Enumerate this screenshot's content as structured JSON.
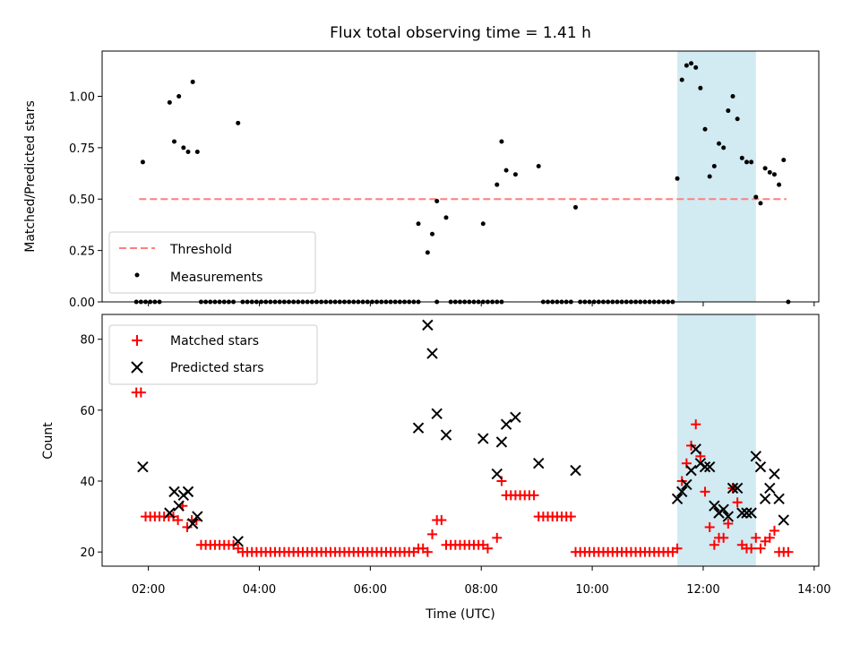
{
  "chart_data": [
    {
      "type": "scatter",
      "title": "Flux total observing time = 1.41 h",
      "xlabel": "",
      "ylabel": "Matched/Predicted stars",
      "ylim": [
        0,
        1.22
      ],
      "xlim": [
        "01:10",
        "14:05"
      ],
      "y_ticks": [
        0.0,
        0.25,
        0.5,
        0.75,
        1.0
      ],
      "y_tick_labels": [
        "0.00",
        "0.25",
        "0.50",
        "0.75",
        "1.00"
      ],
      "highlight_span": {
        "start": "11:32",
        "end": "12:57",
        "color": "#add8e6"
      },
      "legend": {
        "position": "lower-left",
        "entries": [
          "Threshold",
          "Measurements"
        ]
      },
      "threshold": {
        "name": "Threshold",
        "y": 0.5,
        "x_start": "01:50",
        "x_end": "13:30",
        "color": "#ff7f7f",
        "style": "dashed"
      },
      "series": [
        {
          "name": "Measurements",
          "color": "#000000",
          "points": [
            [
              "01:54",
              0.68
            ],
            [
              "02:23",
              0.97
            ],
            [
              "02:28",
              0.78
            ],
            [
              "02:33",
              1.0
            ],
            [
              "02:38",
              0.75
            ],
            [
              "02:43",
              0.73
            ],
            [
              "02:48",
              1.07
            ],
            [
              "02:53",
              0.73
            ],
            [
              "03:37",
              0.87
            ],
            [
              "06:52",
              0.38
            ],
            [
              "07:02",
              0.24
            ],
            [
              "07:07",
              0.33
            ],
            [
              "07:12",
              0.49
            ],
            [
              "07:22",
              0.41
            ],
            [
              "08:02",
              0.38
            ],
            [
              "08:17",
              0.57
            ],
            [
              "08:22",
              0.78
            ],
            [
              "08:27",
              0.64
            ],
            [
              "08:37",
              0.62
            ],
            [
              "09:02",
              0.66
            ],
            [
              "09:42",
              0.46
            ],
            [
              "11:32",
              0.6
            ],
            [
              "11:37",
              1.08
            ],
            [
              "11:42",
              1.15
            ],
            [
              "11:47",
              1.16
            ],
            [
              "11:52",
              1.14
            ],
            [
              "11:57",
              1.04
            ],
            [
              "12:02",
              0.84
            ],
            [
              "12:07",
              0.61
            ],
            [
              "12:12",
              0.66
            ],
            [
              "12:17",
              0.77
            ],
            [
              "12:22",
              0.75
            ],
            [
              "12:27",
              0.93
            ],
            [
              "12:32",
              1.0
            ],
            [
              "12:37",
              0.89
            ],
            [
              "12:42",
              0.7
            ],
            [
              "12:47",
              0.68
            ],
            [
              "12:52",
              0.68
            ],
            [
              "12:57",
              0.51
            ],
            [
              "13:02",
              0.48
            ],
            [
              "13:07",
              0.65
            ],
            [
              "13:12",
              0.63
            ],
            [
              "13:17",
              0.62
            ],
            [
              "13:22",
              0.57
            ],
            [
              "13:27",
              0.69
            ],
            [
              "13:32",
              0.0
            ]
          ],
          "zero_ranges": [
            [
              "01:47",
              "02:12"
            ],
            [
              "02:57",
              "03:32"
            ],
            [
              "03:42",
              "06:52"
            ],
            [
              "07:12",
              "07:12"
            ],
            [
              "07:27",
              "08:22"
            ],
            [
              "09:07",
              "09:37"
            ],
            [
              "09:47",
              "11:27"
            ]
          ]
        }
      ]
    },
    {
      "type": "scatter",
      "title": "",
      "xlabel": "Time (UTC)",
      "ylabel": "Count",
      "ylim": [
        16,
        87
      ],
      "xlim": [
        "01:10",
        "14:05"
      ],
      "y_ticks": [
        20,
        40,
        60,
        80
      ],
      "y_tick_labels": [
        "20",
        "40",
        "60",
        "80"
      ],
      "x_ticks": [
        "02:00",
        "04:00",
        "06:00",
        "08:00",
        "10:00",
        "12:00",
        "14:00"
      ],
      "x_tick_labels": [
        "02:00",
        "04:00",
        "06:00",
        "08:00",
        "10:00",
        "12:00",
        "14:00"
      ],
      "highlight_span": {
        "start": "11:32",
        "end": "12:57",
        "color": "#add8e6"
      },
      "legend": {
        "position": "upper-left",
        "entries": [
          "Matched stars",
          "Predicted stars"
        ]
      },
      "series": [
        {
          "name": "Matched stars",
          "marker": "plus",
          "color": "#ff0000",
          "points": [
            [
              "01:47",
              65
            ],
            [
              "01:52",
              65
            ],
            [
              "01:57",
              30
            ],
            [
              "02:02",
              30
            ],
            [
              "02:07",
              30
            ],
            [
              "02:12",
              30
            ],
            [
              "02:17",
              30
            ],
            [
              "02:22",
              30
            ],
            [
              "02:27",
              30
            ],
            [
              "02:32",
              29
            ],
            [
              "02:37",
              33
            ],
            [
              "02:42",
              27
            ],
            [
              "02:47",
              29
            ],
            [
              "02:52",
              29
            ],
            [
              "02:57",
              22
            ],
            [
              "03:02",
              22
            ],
            [
              "03:07",
              22
            ],
            [
              "03:12",
              22
            ],
            [
              "03:17",
              22
            ],
            [
              "03:22",
              22
            ],
            [
              "03:27",
              22
            ],
            [
              "03:32",
              22
            ],
            [
              "03:37",
              21
            ],
            [
              "03:42",
              20
            ],
            [
              "03:47",
              20
            ],
            [
              "03:52",
              20
            ],
            [
              "03:57",
              20
            ],
            [
              "04:02",
              20
            ],
            [
              "04:07",
              20
            ],
            [
              "04:12",
              20
            ],
            [
              "04:17",
              20
            ],
            [
              "04:22",
              20
            ],
            [
              "04:27",
              20
            ],
            [
              "04:32",
              20
            ],
            [
              "04:37",
              20
            ],
            [
              "04:42",
              20
            ],
            [
              "04:47",
              20
            ],
            [
              "04:52",
              20
            ],
            [
              "04:57",
              20
            ],
            [
              "05:02",
              20
            ],
            [
              "05:07",
              20
            ],
            [
              "05:12",
              20
            ],
            [
              "05:17",
              20
            ],
            [
              "05:22",
              20
            ],
            [
              "05:27",
              20
            ],
            [
              "05:32",
              20
            ],
            [
              "05:37",
              20
            ],
            [
              "05:42",
              20
            ],
            [
              "05:47",
              20
            ],
            [
              "05:52",
              20
            ],
            [
              "05:57",
              20
            ],
            [
              "06:02",
              20
            ],
            [
              "06:07",
              20
            ],
            [
              "06:12",
              20
            ],
            [
              "06:17",
              20
            ],
            [
              "06:22",
              20
            ],
            [
              "06:27",
              20
            ],
            [
              "06:32",
              20
            ],
            [
              "06:37",
              20
            ],
            [
              "06:42",
              20
            ],
            [
              "06:47",
              20
            ],
            [
              "06:52",
              21
            ],
            [
              "06:57",
              21
            ],
            [
              "07:02",
              20
            ],
            [
              "07:07",
              25
            ],
            [
              "07:12",
              29
            ],
            [
              "07:17",
              29
            ],
            [
              "07:22",
              22
            ],
            [
              "07:27",
              22
            ],
            [
              "07:32",
              22
            ],
            [
              "07:37",
              22
            ],
            [
              "07:42",
              22
            ],
            [
              "07:47",
              22
            ],
            [
              "07:52",
              22
            ],
            [
              "07:57",
              22
            ],
            [
              "08:02",
              22
            ],
            [
              "08:07",
              21
            ],
            [
              "08:17",
              24
            ],
            [
              "08:22",
              40
            ],
            [
              "08:27",
              36
            ],
            [
              "08:32",
              36
            ],
            [
              "08:37",
              36
            ],
            [
              "08:42",
              36
            ],
            [
              "08:47",
              36
            ],
            [
              "08:52",
              36
            ],
            [
              "08:57",
              36
            ],
            [
              "09:02",
              30
            ],
            [
              "09:07",
              30
            ],
            [
              "09:12",
              30
            ],
            [
              "09:17",
              30
            ],
            [
              "09:22",
              30
            ],
            [
              "09:27",
              30
            ],
            [
              "09:32",
              30
            ],
            [
              "09:37",
              30
            ],
            [
              "09:42",
              20
            ],
            [
              "09:47",
              20
            ],
            [
              "09:52",
              20
            ],
            [
              "09:57",
              20
            ],
            [
              "10:02",
              20
            ],
            [
              "10:07",
              20
            ],
            [
              "10:12",
              20
            ],
            [
              "10:17",
              20
            ],
            [
              "10:22",
              20
            ],
            [
              "10:27",
              20
            ],
            [
              "10:32",
              20
            ],
            [
              "10:37",
              20
            ],
            [
              "10:42",
              20
            ],
            [
              "10:47",
              20
            ],
            [
              "10:52",
              20
            ],
            [
              "10:57",
              20
            ],
            [
              "11:02",
              20
            ],
            [
              "11:07",
              20
            ],
            [
              "11:12",
              20
            ],
            [
              "11:17",
              20
            ],
            [
              "11:22",
              20
            ],
            [
              "11:27",
              20
            ],
            [
              "11:32",
              21
            ],
            [
              "11:37",
              40
            ],
            [
              "11:42",
              45
            ],
            [
              "11:47",
              50
            ],
            [
              "11:52",
              56
            ],
            [
              "11:57",
              47
            ],
            [
              "12:02",
              37
            ],
            [
              "12:07",
              27
            ],
            [
              "12:12",
              22
            ],
            [
              "12:17",
              24
            ],
            [
              "12:22",
              24
            ],
            [
              "12:27",
              28
            ],
            [
              "12:32",
              38
            ],
            [
              "12:37",
              34
            ],
            [
              "12:42",
              22
            ],
            [
              "12:47",
              21
            ],
            [
              "12:52",
              21
            ],
            [
              "12:57",
              24
            ],
            [
              "13:02",
              21
            ],
            [
              "13:07",
              23
            ],
            [
              "13:12",
              24
            ],
            [
              "13:17",
              26
            ],
            [
              "13:22",
              20
            ],
            [
              "13:27",
              20
            ],
            [
              "13:32",
              20
            ]
          ]
        },
        {
          "name": "Predicted stars",
          "marker": "x",
          "color": "#000000",
          "points": [
            [
              "01:54",
              44
            ],
            [
              "02:23",
              31
            ],
            [
              "02:28",
              37
            ],
            [
              "02:33",
              33
            ],
            [
              "02:38",
              36
            ],
            [
              "02:43",
              37
            ],
            [
              "02:48",
              28
            ],
            [
              "02:53",
              30
            ],
            [
              "03:37",
              23
            ],
            [
              "06:52",
              55
            ],
            [
              "07:02",
              84
            ],
            [
              "07:07",
              76
            ],
            [
              "07:12",
              59
            ],
            [
              "07:22",
              53
            ],
            [
              "08:02",
              52
            ],
            [
              "08:17",
              42
            ],
            [
              "08:22",
              51
            ],
            [
              "08:27",
              56
            ],
            [
              "08:37",
              58
            ],
            [
              "09:02",
              45
            ],
            [
              "09:42",
              43
            ],
            [
              "11:32",
              35
            ],
            [
              "11:37",
              37
            ],
            [
              "11:42",
              39
            ],
            [
              "11:47",
              43
            ],
            [
              "11:52",
              49
            ],
            [
              "11:57",
              45
            ],
            [
              "12:02",
              44
            ],
            [
              "12:07",
              44
            ],
            [
              "12:12",
              33
            ],
            [
              "12:17",
              31
            ],
            [
              "12:22",
              32
            ],
            [
              "12:27",
              30
            ],
            [
              "12:32",
              38
            ],
            [
              "12:37",
              38
            ],
            [
              "12:42",
              31
            ],
            [
              "12:47",
              31
            ],
            [
              "12:52",
              31
            ],
            [
              "12:57",
              47
            ],
            [
              "13:02",
              44
            ],
            [
              "13:07",
              35
            ],
            [
              "13:12",
              38
            ],
            [
              "13:17",
              42
            ],
            [
              "13:22",
              35
            ],
            [
              "13:27",
              29
            ]
          ]
        }
      ]
    }
  ]
}
